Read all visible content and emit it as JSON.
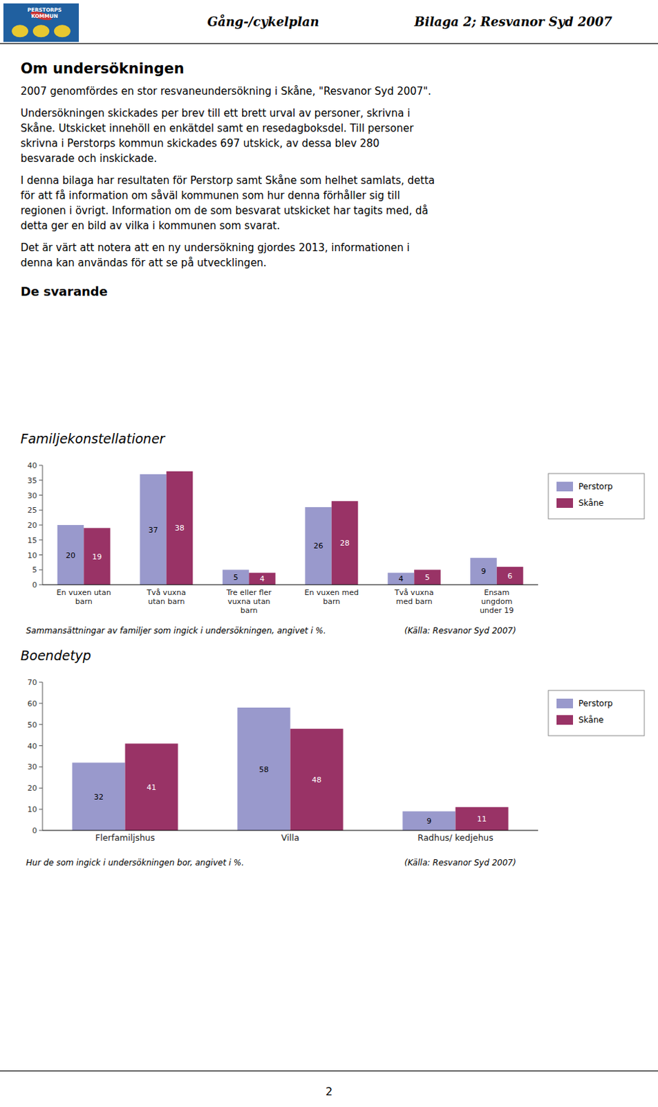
{
  "header": [
    "Gång-/cykelplan",
    "Bilaga 2; Resvanor Syd 2007"
  ],
  "logo": [
    "PERSTORPS",
    "KOMMUN"
  ],
  "title": "Om undersökningen",
  "paragraphs": [
    [
      "2007 genomfördes en stor resvaneundersökning i Skåne, \"Resvanor Syd 2007\"."
    ],
    [
      "Undersökningen skickades per brev till ett brett urval av personer, skrivna i",
      "Skåne. Utskicket innehöll en enkätdel samt en resedagboksdel. Till personer",
      "skrivna i Perstorps kommun skickades 697 utskick, av dessa blev 280",
      "besvarade och inskickade."
    ],
    [
      "I denna bilaga har resultaten för Perstorp samt Skåne som helhet samlats, detta",
      "för att få information om såväl kommunen som hur denna förhåller sig till",
      "regionen i övrigt. Information om de som besvarat utskicket har tagits med, då",
      "detta ger en bild av vilka i kommunen som svarat."
    ],
    [
      "Det är värt att notera att en ny undersökning gjordes 2013, informationen i",
      "denna kan användas för att se på utvecklingen."
    ]
  ],
  "section": "De svarande",
  "page_number": "2",
  "chart_data": [
    {
      "type": "bar",
      "title": "Familjekonstellationer",
      "categories": [
        "En vuxen utan\nbarn",
        "Två vuxna\nutan barn",
        "Tre eller fler\nvuxna utan\nbarn",
        "En vuxen med\nbarn",
        "Två vuxna\nmed barn",
        "Ensam\nungdom\nunder 19"
      ],
      "series": [
        {
          "name": "Perstorp",
          "color": "#9999cc",
          "values": [
            20,
            37,
            5,
            26,
            4,
            9
          ]
        },
        {
          "name": "Skåne",
          "color": "#993366",
          "values": [
            19,
            38,
            4,
            28,
            5,
            6
          ]
        }
      ],
      "ylim": [
        0,
        40
      ],
      "yticks": [
        0,
        5,
        10,
        15,
        20,
        25,
        30,
        35,
        40
      ],
      "grid": false,
      "legend": "right",
      "data_labels": true,
      "caption": "Sammansättningar av familjer som ingick i undersökningen, angivet i %.",
      "source": "(Källa: Resvanor Syd 2007)"
    },
    {
      "type": "bar",
      "title": "Boendetyp",
      "categories": [
        "Flerfamiljshus",
        "Villa",
        "Radhus/ kedjehus"
      ],
      "series": [
        {
          "name": "Perstorp",
          "color": "#9999cc",
          "values": [
            32,
            58,
            9
          ]
        },
        {
          "name": "Skåne",
          "color": "#993366",
          "values": [
            41,
            48,
            11
          ]
        }
      ],
      "ylim": [
        0,
        70
      ],
      "yticks": [
        0,
        10,
        20,
        30,
        40,
        50,
        60,
        70
      ],
      "grid": false,
      "legend": "right",
      "data_labels": true,
      "caption": "Hur de som ingick i undersökningen bor, angivet i %.",
      "source": "(Källa: Resvanor Syd 2007)"
    }
  ]
}
